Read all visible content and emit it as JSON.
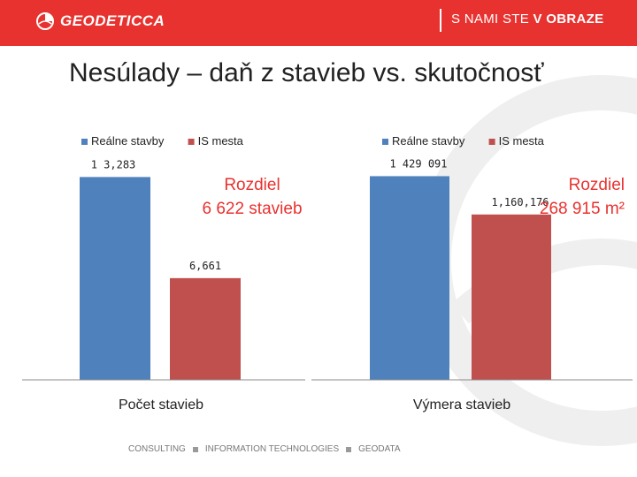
{
  "header": {
    "logo_text": "GEODETICCA",
    "slogan_prefix": "S NAMI STE",
    "slogan_bold": "V OBRAZE"
  },
  "slide": {
    "title": "Nesúlady – daň z stavieb vs. skutočnosť"
  },
  "colors": {
    "accent": "#e8322f",
    "series_real": "#4f81bd",
    "series_is": "#c0504d"
  },
  "chart_data": [
    {
      "type": "bar",
      "categories": [
        "Počet stavieb"
      ],
      "series": [
        {
          "name": "Reálne stavby",
          "values": [
            13283
          ],
          "label": "1 3,283"
        },
        {
          "name": "IS mesta",
          "values": [
            6661
          ],
          "label": "6,661"
        }
      ],
      "xlabel": "Počet stavieb",
      "ylim": [
        0,
        14000
      ],
      "legend": "top-left",
      "annotation_line1": "Rozdiel",
      "annotation_line2": "6 622 stavieb"
    },
    {
      "type": "bar",
      "categories": [
        "Výmera stavieb"
      ],
      "series": [
        {
          "name": "Reálne stavby",
          "values": [
            1429091
          ],
          "label": "1 429 091"
        },
        {
          "name": "IS mesta",
          "values": [
            1160176
          ],
          "label": "1,160,176"
        }
      ],
      "xlabel": "Výmera stavieb",
      "ylim": [
        0,
        1500000
      ],
      "legend": "top-left",
      "annotation_line1": "Rozdiel",
      "annotation_line2": "268 915 m²"
    }
  ],
  "footer": {
    "items": [
      "CONSULTING",
      "INFORMATION TECHNOLOGIES",
      "GEODATA"
    ]
  }
}
